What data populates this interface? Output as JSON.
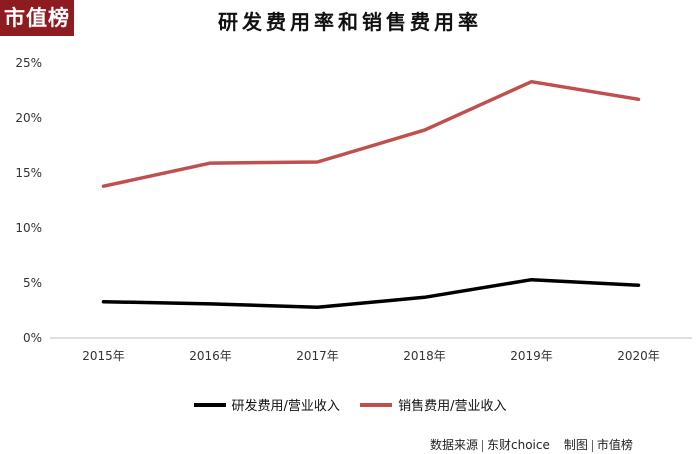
{
  "brand": {
    "logo_text": "市值榜",
    "logo_color": "#8e1b1f"
  },
  "chart_data": {
    "type": "line",
    "title": "研发费用率和销售费用率",
    "categories": [
      "2015年",
      "2016年",
      "2017年",
      "2018年",
      "2019年",
      "2020年"
    ],
    "series": [
      {
        "name": "研发费用/营业收入",
        "color": "#000000",
        "values": [
          3.3,
          3.1,
          2.8,
          3.7,
          5.3,
          4.8
        ]
      },
      {
        "name": "销售费用/营业收入",
        "color": "#c0504d",
        "values": [
          13.8,
          15.9,
          16.0,
          18.9,
          23.3,
          21.7
        ]
      }
    ],
    "ylim": [
      0,
      25
    ],
    "yticks": [
      "0%",
      "5%",
      "10%",
      "15%",
      "20%",
      "25%"
    ],
    "ytick_values": [
      0,
      5,
      10,
      15,
      20,
      25
    ],
    "grid": false,
    "legend_position": "bottom"
  },
  "source": {
    "label": "数据来源",
    "provider": "东财choice",
    "made_by_label": "制图",
    "made_by": "市值榜"
  }
}
